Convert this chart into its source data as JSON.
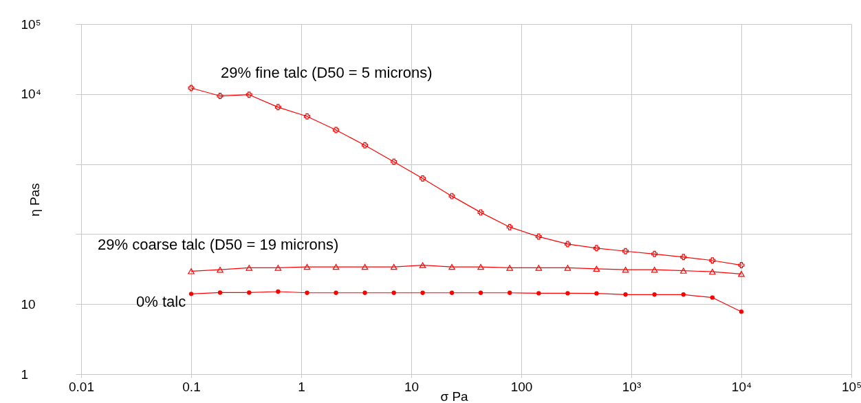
{
  "chart_data": {
    "type": "line",
    "xlabel": "σ Pa",
    "ylabel": "η Pas",
    "log": "xy",
    "grid": true,
    "legend": false,
    "line_style": "solid",
    "x": [
      0.1,
      0.183,
      0.336,
      0.616,
      1.13,
      2.07,
      3.79,
      6.95,
      12.7,
      23.4,
      42.8,
      78.5,
      144,
      264,
      483,
      886,
      1624,
      2976,
      5456,
      10000
    ],
    "xlim": [
      0.01,
      100000
    ],
    "ylim": [
      1,
      100000
    ],
    "xticks": [
      0.01,
      0.1,
      1,
      10,
      100,
      {
        "value": 1000,
        "label": "10³"
      },
      {
        "value": 10000,
        "label": "10⁴"
      },
      {
        "value": 100000,
        "label": "10⁵"
      }
    ],
    "yticks": [
      1,
      10,
      {
        "value": 100,
        "label": null
      },
      {
        "value": 1000,
        "label": null
      },
      {
        "value": 10000,
        "label": "10⁴"
      },
      {
        "value": 100000,
        "label": "10⁵"
      }
    ],
    "series": [
      {
        "name": "29% fine talc (D50 = 5 microns)",
        "color": "#ff0000",
        "marker": "cross",
        "values": [
          12200,
          9400,
          9800,
          6500,
          4800,
          3070,
          1860,
          1080,
          624,
          349,
          204,
          126,
          92,
          72,
          63,
          57,
          52,
          47,
          42,
          36
        ]
      },
      {
        "name": "29% coarse talc (D50 = 19 microns)",
        "color": "#ff0000",
        "marker": "triangle",
        "values": [
          29.5,
          31,
          33,
          33,
          34,
          34,
          34,
          34,
          36,
          34,
          34,
          33,
          33,
          33,
          32,
          31,
          31,
          30,
          29,
          27
        ]
      },
      {
        "name": "0% talc",
        "color": "#ff0000",
        "marker": "circle",
        "values": [
          14,
          14.6,
          14.6,
          15.1,
          14.5,
          14.5,
          14.5,
          14.5,
          14.5,
          14.5,
          14.5,
          14.5,
          14.3,
          14.3,
          14.2,
          13.7,
          13.7,
          13.7,
          12.4,
          7.8
        ]
      }
    ]
  }
}
